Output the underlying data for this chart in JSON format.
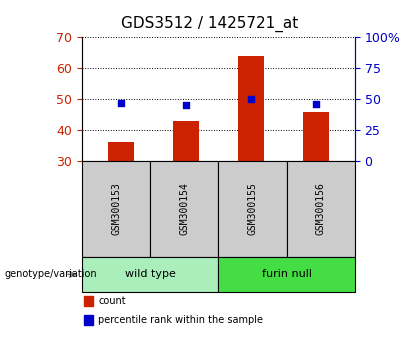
{
  "title": "GDS3512 / 1425721_at",
  "samples": [
    "GSM300153",
    "GSM300154",
    "GSM300155",
    "GSM300156"
  ],
  "count_values": [
    36,
    43,
    64,
    46
  ],
  "percentile_values": [
    47,
    45,
    50,
    46
  ],
  "left_ylim": [
    30,
    70
  ],
  "right_ylim": [
    0,
    100
  ],
  "left_yticks": [
    30,
    40,
    50,
    60,
    70
  ],
  "right_yticks": [
    0,
    25,
    50,
    75,
    100
  ],
  "right_yticklabels": [
    "0",
    "25",
    "50",
    "75",
    "100%"
  ],
  "bar_color": "#cc2200",
  "dot_color": "#0000cc",
  "bar_width": 0.4,
  "groups": [
    {
      "label": "wild type",
      "samples": [
        0,
        1
      ],
      "color": "#aaeebb"
    },
    {
      "label": "furin null",
      "samples": [
        2,
        3
      ],
      "color": "#44dd44"
    }
  ],
  "group_label": "genotype/variation",
  "legend_items": [
    {
      "label": "count",
      "color": "#cc2200"
    },
    {
      "label": "percentile rank within the sample",
      "color": "#0000cc"
    }
  ],
  "left_axis_color": "#cc2200",
  "right_axis_color": "#0000cc",
  "sample_box_color": "#cccccc",
  "title_fontsize": 11
}
